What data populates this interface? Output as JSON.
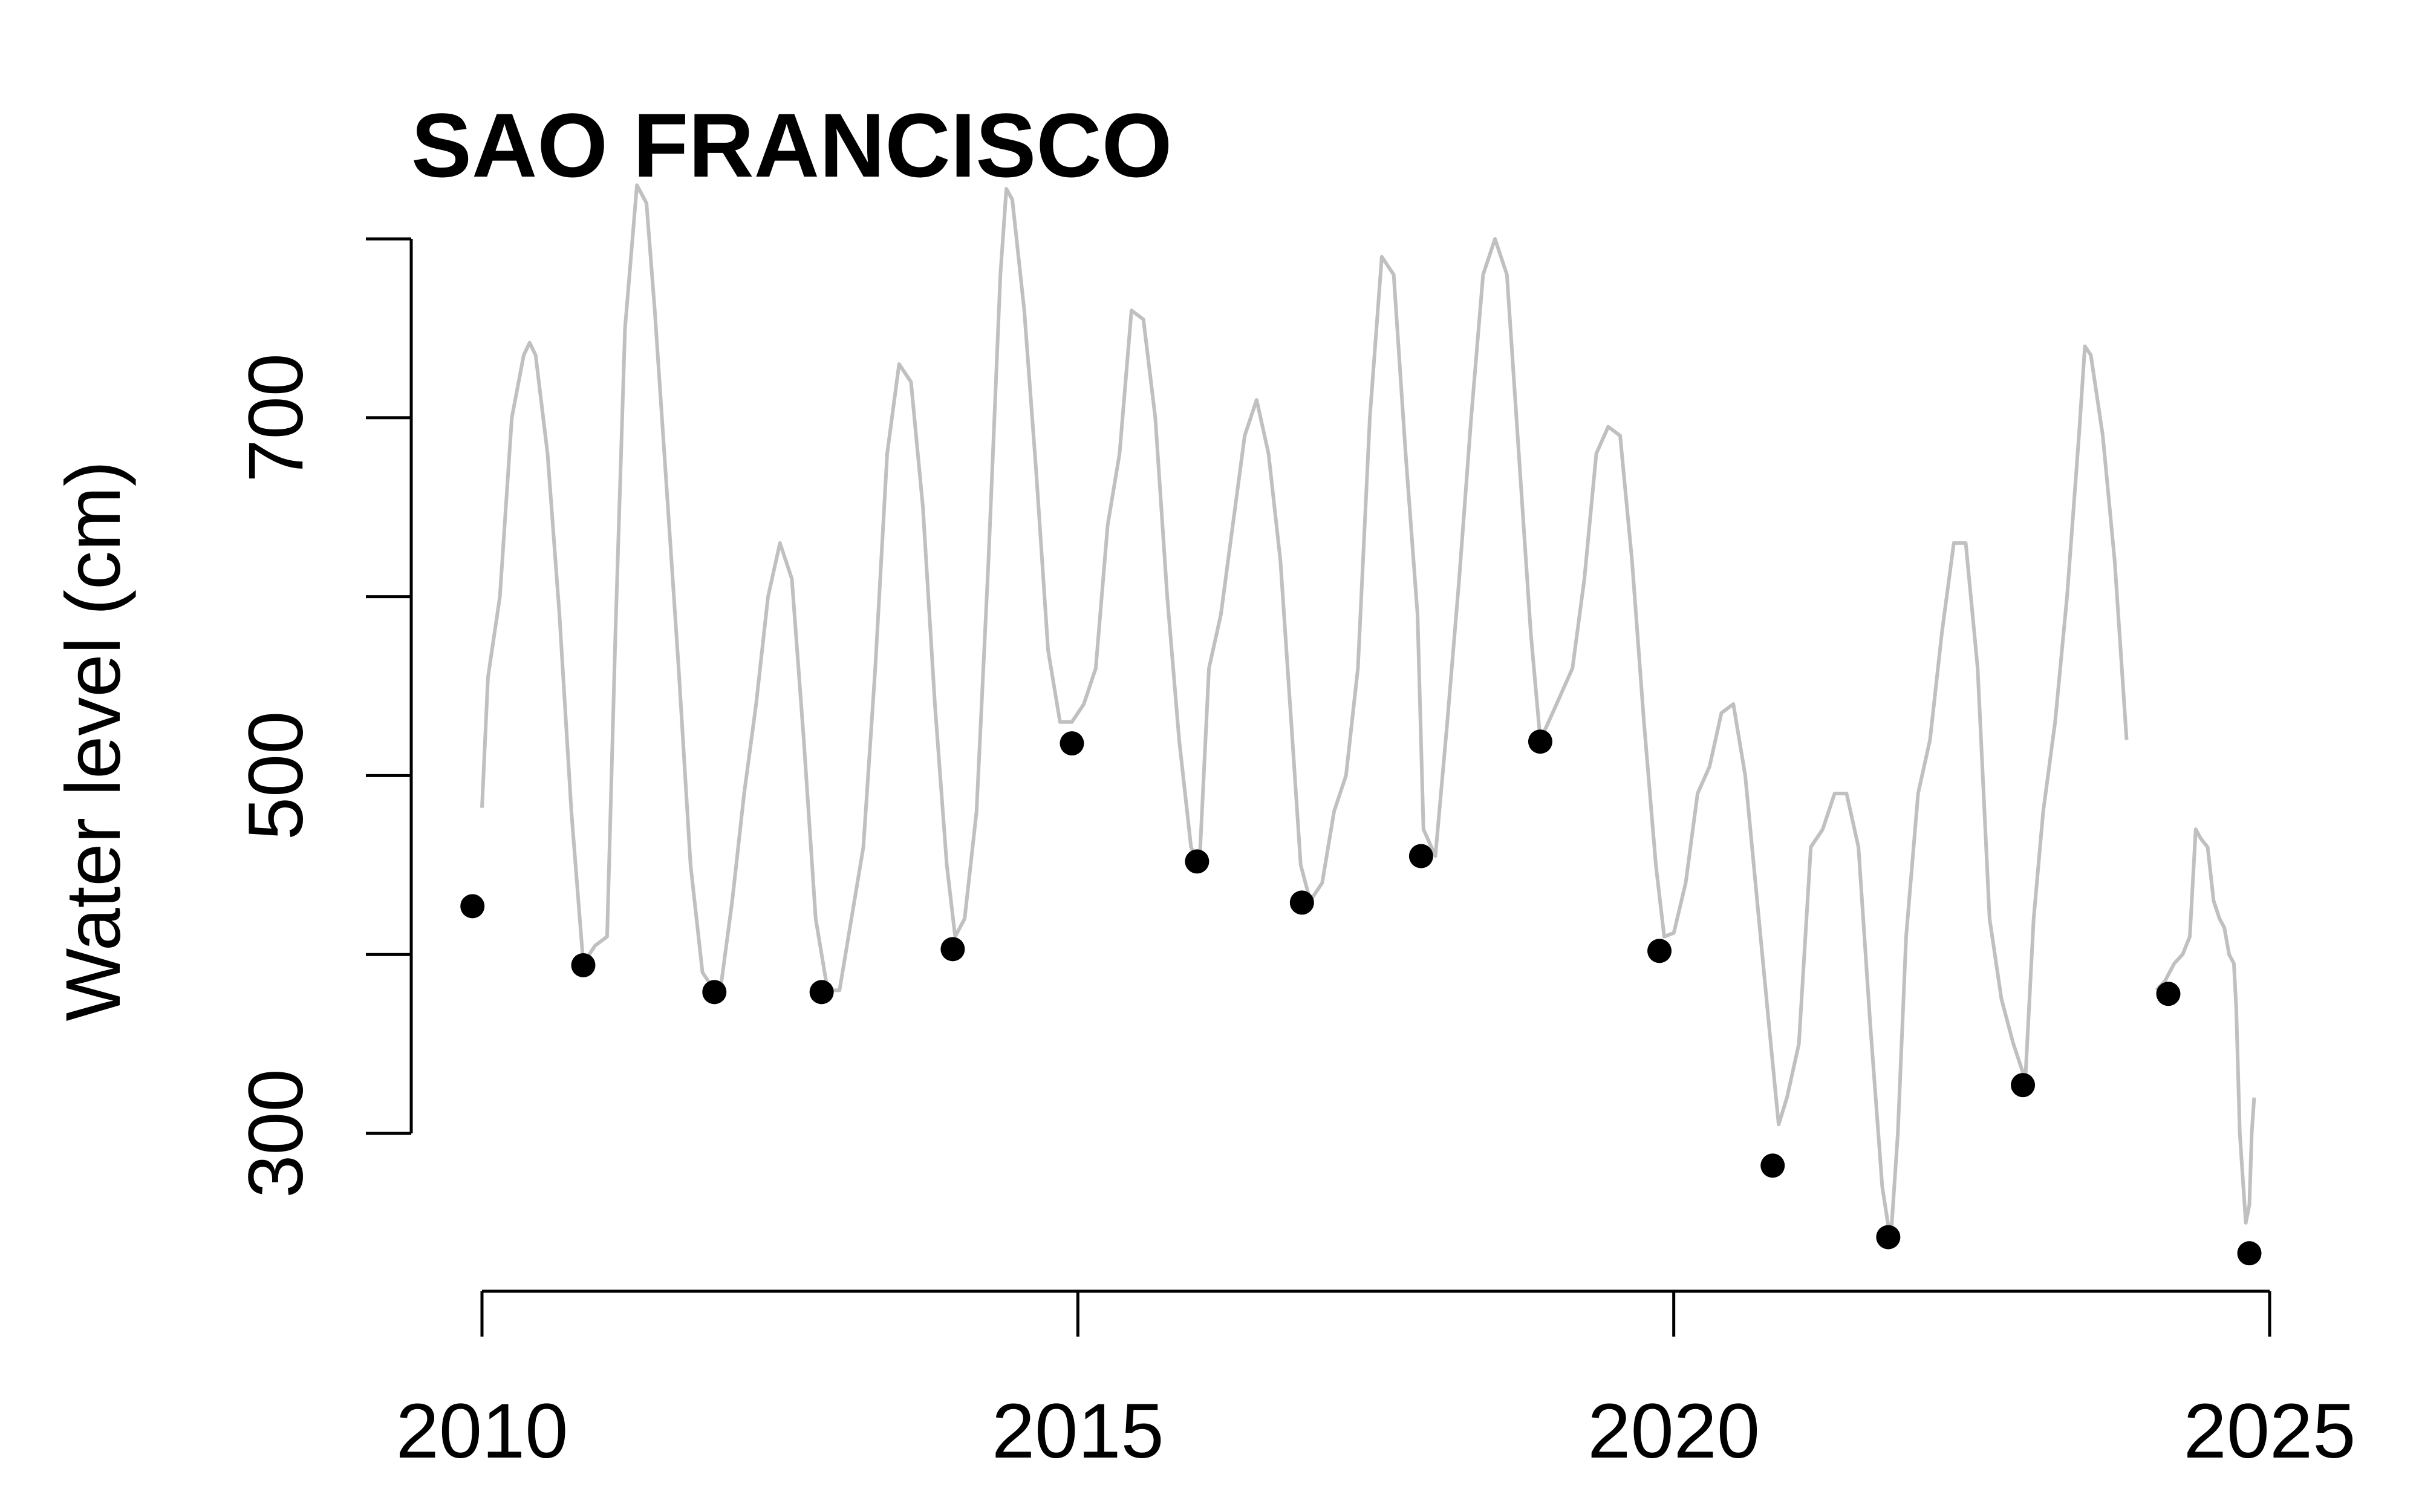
{
  "chart_data": {
    "type": "line",
    "title": "SAO FRANCISCO",
    "xlabel": "",
    "ylabel": "Water level (cm)",
    "xlim": [
      2010,
      2025
    ],
    "ylim": [
      300,
      800
    ],
    "x_ticks": [
      2010,
      2015,
      2020,
      2025
    ],
    "y_ticks": [
      300,
      500,
      700
    ],
    "grid": false,
    "colors": {
      "line": "#c0c0c0",
      "points": "#000000",
      "axis": "#000000"
    },
    "series": [
      {
        "type": "line",
        "x": [
          2010.0,
          2010.05,
          2010.15,
          2010.25,
          2010.35,
          2010.4,
          2010.45,
          2010.55,
          2010.65,
          2010.75,
          2010.85,
          2010.95,
          2011.05,
          2011.12,
          2011.2,
          2011.3,
          2011.38,
          2011.45,
          2011.55,
          2011.65,
          2011.75,
          2011.85,
          2011.95,
          2012.0,
          2012.1,
          2012.2,
          2012.3,
          2012.4,
          2012.5,
          2012.6,
          2012.7,
          2012.8,
          2012.9,
          2013.0,
          2013.1,
          2013.2,
          2013.3,
          2013.4,
          2013.5,
          2013.6,
          2013.7,
          2013.8,
          2013.9,
          2013.97,
          2014.05,
          2014.15,
          2014.25,
          2014.35,
          2014.4,
          2014.45,
          2014.55,
          2014.65,
          2014.75,
          2014.85,
          2014.95,
          2015.05,
          2015.15,
          2015.25,
          2015.35,
          2015.45,
          2015.55,
          2015.65,
          2015.75,
          2015.85,
          2015.95,
          2016.02,
          2016.1,
          2016.2,
          2016.3,
          2016.4,
          2016.5,
          2016.6,
          2016.7,
          2016.8,
          2016.87,
          2016.95,
          2017.05,
          2017.15,
          2017.25,
          2017.35,
          2017.45,
          2017.55,
          2017.65,
          2017.75,
          2017.85,
          2017.9,
          2018.0,
          2018.1,
          2018.2,
          2018.3,
          2018.4,
          2018.5,
          2018.6,
          2018.7,
          2018.8,
          2018.88,
          2018.95,
          2019.05,
          2019.15,
          2019.25,
          2019.35,
          2019.45,
          2019.55,
          2019.65,
          2019.75,
          2019.85,
          2019.92,
          2020.0,
          2020.1,
          2020.2,
          2020.3,
          2020.4,
          2020.5,
          2020.6,
          2020.7,
          2020.8,
          2020.88,
          2020.95,
          2021.05,
          2021.15,
          2021.25,
          2021.35,
          2021.45,
          2021.55,
          2021.65,
          2021.75,
          2021.82,
          2021.88,
          2021.95,
          2022.05,
          2022.15,
          2022.25,
          2022.35,
          2022.45,
          2022.55,
          2022.65,
          2022.75,
          2022.85,
          2022.95,
          2023.02,
          2023.1,
          2023.2,
          2023.3,
          2023.4,
          2023.45,
          2023.5,
          2023.6,
          2023.7,
          2023.8
        ],
        "y": [
          482,
          555,
          600,
          700,
          735,
          742,
          735,
          680,
          590,
          480,
          395,
          405,
          410,
          580,
          750,
          830,
          820,
          760,
          660,
          560,
          450,
          390,
          380,
          380,
          430,
          490,
          540,
          600,
          630,
          610,
          520,
          420,
          380,
          380,
          420,
          460,
          560,
          680,
          730,
          720,
          650,
          540,
          450,
          410,
          420,
          480,
          620,
          780,
          828,
          822,
          760,
          670,
          570,
          530,
          530,
          540,
          560,
          640,
          680,
          760,
          755,
          700,
          600,
          520,
          460,
          450,
          560,
          590,
          640,
          690,
          710,
          680,
          620,
          520,
          450,
          430,
          440,
          480,
          500,
          560,
          700,
          790,
          780,
          680,
          590,
          470,
          455,
          530,
          610,
          700,
          780,
          800,
          780,
          680,
          580,
          520,
          530,
          545,
          560,
          610,
          680,
          695,
          690,
          620,
          530,
          450,
          410,
          412,
          440,
          490,
          505,
          535,
          540,
          500,
          430,
          360,
          305,
          320,
          350,
          460,
          470,
          490,
          490,
          460,
          360,
          270,
          240,
          300,
          410,
          490,
          520,
          580,
          630,
          630,
          560,
          420,
          375,
          350,
          330,
          420,
          480,
          530,
          600,
          690,
          740,
          735,
          690,
          620,
          520
        ]
      },
      {
        "type": "line",
        "x": [
          2024.05,
          2024.12,
          2024.2,
          2024.27,
          2024.33,
          2024.38,
          2024.42,
          2024.48,
          2024.53,
          2024.58,
          2024.62,
          2024.66,
          2024.7,
          2024.72,
          2024.75,
          2024.78,
          2024.8,
          2024.83,
          2024.85,
          2024.87
        ],
        "y": [
          380,
          385,
          395,
          400,
          410,
          470,
          465,
          460,
          430,
          420,
          415,
          400,
          395,
          370,
          300,
          270,
          250,
          260,
          300,
          320
        ]
      },
      {
        "type": "scatter",
        "x": [
          2009.92,
          2010.85,
          2011.95,
          2012.85,
          2013.95,
          2014.95,
          2016.0,
          2016.88,
          2017.88,
          2018.88,
          2019.88,
          2020.83,
          2021.8,
          2022.93,
          2024.15,
          2024.83
        ],
        "y": [
          427,
          394,
          379,
          379,
          403,
          518,
          452,
          429,
          455,
          519,
          402,
          282,
          242,
          327,
          378,
          233
        ]
      }
    ]
  }
}
